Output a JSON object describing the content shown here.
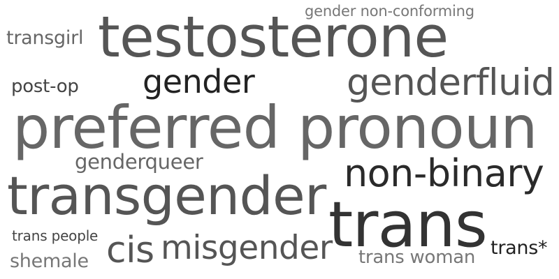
{
  "words": [
    {
      "text": "testosterone",
      "color": "#555555"
    },
    {
      "text": "gender non-conforming",
      "color": "#777777"
    },
    {
      "text": "transgirl",
      "color": "#666666"
    },
    {
      "text": "post-op",
      "color": "#444444"
    },
    {
      "text": "gender",
      "color": "#222222"
    },
    {
      "text": "genderfluid",
      "color": "#555555"
    },
    {
      "text": "preferred pronoun",
      "color": "#666666"
    },
    {
      "text": "genderqueer",
      "color": "#666666"
    },
    {
      "text": "non-binary",
      "color": "#2a2a2a"
    },
    {
      "text": "transgender",
      "color": "#555555"
    },
    {
      "text": "trans",
      "color": "#333333"
    },
    {
      "text": "trans people",
      "color": "#444444"
    },
    {
      "text": "cis",
      "color": "#555555"
    },
    {
      "text": "misgender",
      "color": "#555555"
    },
    {
      "text": "shemale",
      "color": "#777777"
    },
    {
      "text": "trans woman",
      "color": "#777777"
    },
    {
      "text": "trans*",
      "color": "#222222"
    }
  ]
}
